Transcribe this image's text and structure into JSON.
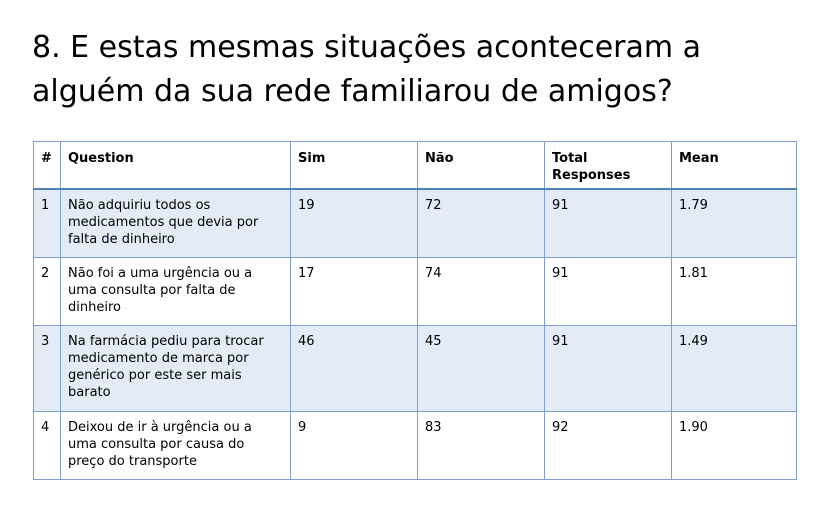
{
  "title": "8.  E estas mesmas situações aconteceram a alguém da sua rede familiarou de amigos?",
  "table": {
    "headers": {
      "num": "#",
      "question": "Question",
      "sim": "Sim",
      "nao": "Não",
      "total": "Total Responses",
      "mean": "Mean"
    },
    "rows": [
      {
        "num": "1",
        "question": "Não adquiriu todos os medicamentos que devia por falta de dinheiro",
        "sim": "19",
        "nao": "72",
        "total": "91",
        "mean": "1.79"
      },
      {
        "num": "2",
        "question": "Não foi a uma urgência ou a uma consulta por falta de dinheiro",
        "sim": "17",
        "nao": "74",
        "total": "91",
        "mean": "1.81"
      },
      {
        "num": "3",
        "question": "Na farmácia pediu para trocar medicamento de marca por genérico por este ser mais barato",
        "sim": "46",
        "nao": "45",
        "total": "91",
        "mean": "1.49"
      },
      {
        "num": "4",
        "question": "Deixou de ir à urgência ou a uma consulta por causa do preço do transporte",
        "sim": "9",
        "nao": "83",
        "total": "92",
        "mean": "1.90"
      }
    ]
  },
  "colors": {
    "row_shade": "#e3ebf6",
    "border": "#7f9fcf",
    "header_rule": "#4f81bd"
  }
}
